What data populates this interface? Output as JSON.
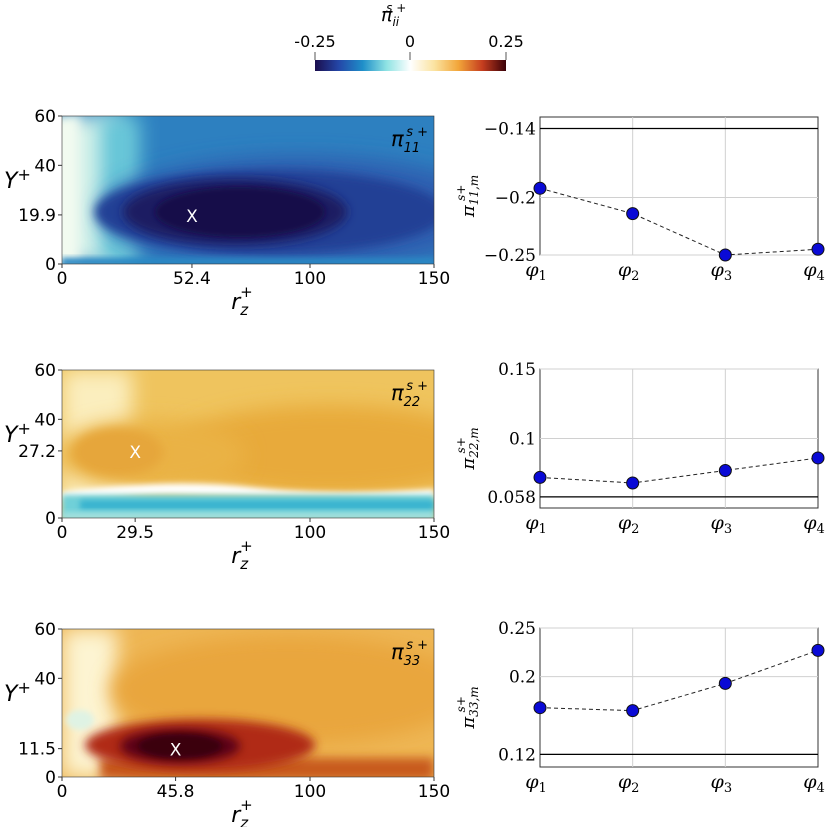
{
  "colorbar": {
    "title": "π",
    "title_sub": "ii",
    "title_sup": "s +",
    "tick_labels": [
      "-0.25",
      "0",
      "0.25"
    ],
    "range": [
      -0.25,
      0.25
    ],
    "colors": [
      "#1b0e4e",
      "#2447a8",
      "#1f8fc9",
      "#8fe3e3",
      "#ffffff",
      "#fbe3a0",
      "#f2a63a",
      "#c63e1f",
      "#3a0008"
    ]
  },
  "chart_data": [
    {
      "type": "heatmap",
      "component": "11",
      "label_main": "π",
      "label_sub": "11",
      "label_sup": "s +",
      "xlabel": "r",
      "xlabel_sub": "z",
      "xlabel_sup": "+",
      "ylabel": "Y",
      "ylabel_sup": "+",
      "xlim": [
        0,
        150
      ],
      "ylim": [
        0,
        60
      ],
      "x_ticks": [
        "0",
        "52.4",
        "100",
        "150"
      ],
      "x_tick_values": [
        0,
        52.4,
        100,
        150
      ],
      "y_ticks": [
        "0",
        "19.9",
        "40",
        "60"
      ],
      "y_tick_values": [
        0,
        19.9,
        40,
        60
      ],
      "marker": {
        "x": 52.4,
        "y": 19.9,
        "symbol": "X"
      },
      "extremum": -0.25
    },
    {
      "type": "line",
      "component": "11",
      "ylabel": "π",
      "ylabel_sub": "11,m",
      "ylabel_sup": "s+",
      "categories": [
        "φ1",
        "φ2",
        "φ3",
        "φ4"
      ],
      "category_main": "φ",
      "category_subs": [
        "1",
        "2",
        "3",
        "4"
      ],
      "values": [
        -0.192,
        -0.214,
        -0.25,
        -0.245
      ],
      "reference": -0.14,
      "ylim": [
        -0.25,
        -0.13
      ],
      "y_ticks": [
        "−0.14",
        "−0.2",
        "−0.25"
      ],
      "y_tick_values": [
        -0.14,
        -0.2,
        -0.25
      ]
    },
    {
      "type": "heatmap",
      "component": "22",
      "label_main": "π",
      "label_sub": "22",
      "label_sup": "s +",
      "xlabel": "r",
      "xlabel_sub": "z",
      "xlabel_sup": "+",
      "ylabel": "Y",
      "ylabel_sup": "+",
      "xlim": [
        0,
        150
      ],
      "ylim": [
        0,
        60
      ],
      "x_ticks": [
        "0",
        "29.5",
        "100",
        "150"
      ],
      "x_tick_values": [
        0,
        29.5,
        100,
        150
      ],
      "y_ticks": [
        "0",
        "27.2",
        "40",
        "60"
      ],
      "y_tick_values": [
        0,
        27.2,
        40,
        60
      ],
      "marker": {
        "x": 29.5,
        "y": 27.2,
        "symbol": "X"
      },
      "extremum": 0.058
    },
    {
      "type": "line",
      "component": "22",
      "ylabel": "π",
      "ylabel_sub": "22,m",
      "ylabel_sup": "s+",
      "categories": [
        "φ1",
        "φ2",
        "φ3",
        "φ4"
      ],
      "category_main": "φ",
      "category_subs": [
        "1",
        "2",
        "3",
        "4"
      ],
      "values": [
        0.072,
        0.068,
        0.077,
        0.086
      ],
      "reference": 0.058,
      "ylim": [
        0.05,
        0.15
      ],
      "y_ticks": [
        "0.15",
        "0.1",
        "0.058"
      ],
      "y_tick_values": [
        0.15,
        0.1,
        0.058
      ]
    },
    {
      "type": "heatmap",
      "component": "33",
      "label_main": "π",
      "label_sub": "33",
      "label_sup": "s +",
      "xlabel": "r",
      "xlabel_sub": "z",
      "xlabel_sup": "+",
      "ylabel": "Y",
      "ylabel_sup": "+",
      "xlim": [
        0,
        150
      ],
      "ylim": [
        0,
        60
      ],
      "x_ticks": [
        "0",
        "45.8",
        "100",
        "150"
      ],
      "x_tick_values": [
        0,
        45.8,
        100,
        150
      ],
      "y_ticks": [
        "0",
        "11.5",
        "40",
        "60"
      ],
      "y_tick_values": [
        0,
        11.5,
        40,
        60
      ],
      "marker": {
        "x": 45.8,
        "y": 11.5,
        "symbol": "X"
      },
      "extremum": 0.25
    },
    {
      "type": "line",
      "component": "33",
      "ylabel": "π",
      "ylabel_sub": "33,m",
      "ylabel_sup": "s+",
      "categories": [
        "φ1",
        "φ2",
        "φ3",
        "φ4"
      ],
      "category_main": "φ",
      "category_subs": [
        "1",
        "2",
        "3",
        "4"
      ],
      "values": [
        0.168,
        0.165,
        0.193,
        0.227
      ],
      "reference": 0.12,
      "ylim": [
        0.107,
        0.25
      ],
      "y_ticks": [
        "0.25",
        "0.2",
        "0.12"
      ],
      "y_tick_values": [
        0.25,
        0.2,
        0.12
      ]
    }
  ]
}
